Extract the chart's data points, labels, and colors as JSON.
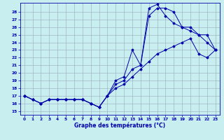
{
  "title": "Graphe des températures (°C)",
  "bg_color": "#c8eef0",
  "grid_color": "#99aabb",
  "line_color": "#0000aa",
  "xlim": [
    -0.5,
    23.5
  ],
  "ylim": [
    14.5,
    29.2
  ],
  "ytick_vals": [
    15,
    16,
    17,
    18,
    19,
    20,
    21,
    22,
    23,
    24,
    25,
    26,
    27,
    28
  ],
  "xtick_vals": [
    0,
    1,
    2,
    3,
    4,
    5,
    6,
    7,
    8,
    9,
    10,
    11,
    12,
    13,
    14,
    15,
    16,
    17,
    18,
    19,
    20,
    21,
    22,
    23
  ],
  "series1_x": [
    0,
    1,
    2,
    3,
    4,
    5,
    6,
    7,
    8,
    9,
    10,
    11,
    12,
    13,
    14,
    15,
    16,
    17,
    18,
    19,
    20,
    21,
    22,
    23
  ],
  "series1_y": [
    17.0,
    16.5,
    16.0,
    16.5,
    16.5,
    16.5,
    16.5,
    16.5,
    16.0,
    15.5,
    17.0,
    19.0,
    19.5,
    23.0,
    21.0,
    28.5,
    29.0,
    27.5,
    26.5,
    26.0,
    25.5,
    25.0,
    24.0,
    23.0
  ],
  "series2_x": [
    0,
    1,
    2,
    3,
    4,
    5,
    6,
    7,
    8,
    9,
    10,
    11,
    12,
    13,
    14,
    15,
    16,
    17,
    18,
    19,
    20,
    21,
    22,
    23
  ],
  "series2_y": [
    17.0,
    16.5,
    16.0,
    16.5,
    16.5,
    16.5,
    16.5,
    16.5,
    16.0,
    15.5,
    17.0,
    18.5,
    19.0,
    20.5,
    21.0,
    27.5,
    28.5,
    28.5,
    28.0,
    26.0,
    26.0,
    25.0,
    25.0,
    23.0
  ],
  "series3_x": [
    0,
    1,
    2,
    3,
    4,
    5,
    6,
    7,
    8,
    9,
    10,
    11,
    12,
    13,
    14,
    15,
    16,
    17,
    18,
    19,
    20,
    21,
    22,
    23
  ],
  "series3_y": [
    17.0,
    16.5,
    16.0,
    16.5,
    16.5,
    16.5,
    16.5,
    16.5,
    16.0,
    15.5,
    17.0,
    18.0,
    18.5,
    19.5,
    20.5,
    21.5,
    22.5,
    23.0,
    23.5,
    24.0,
    24.5,
    22.5,
    22.0,
    23.0
  ]
}
